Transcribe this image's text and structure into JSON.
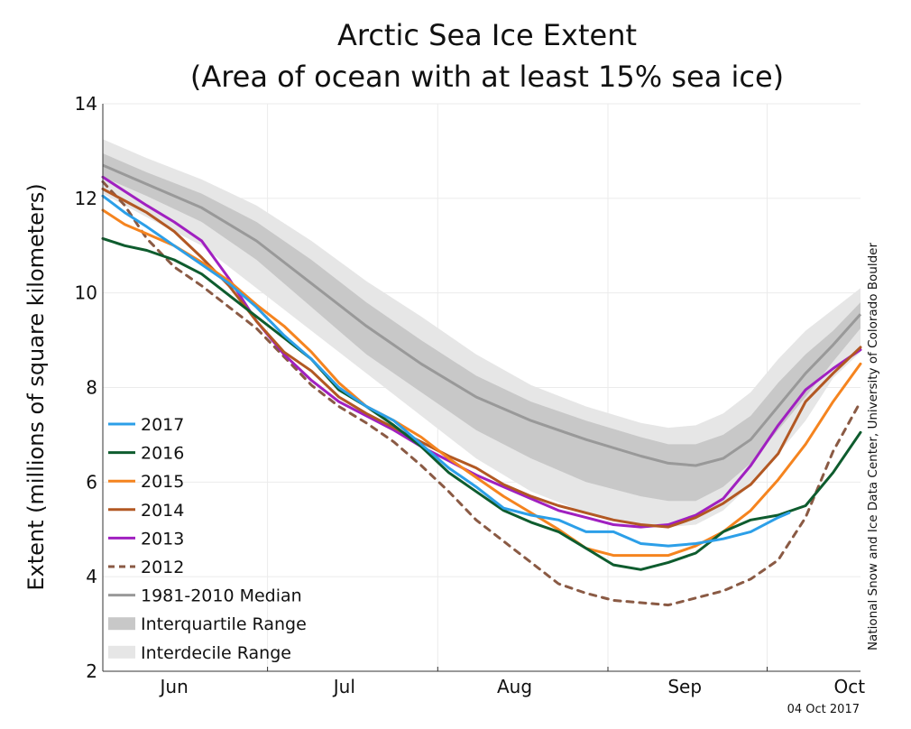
{
  "chart_data": {
    "type": "line",
    "title": [
      "Arctic Sea Ice Extent",
      "(Area of ocean with at least 15% sea ice)"
    ],
    "ylabel": "Extent (millions of square kilometers)",
    "ylim": [
      2,
      14
    ],
    "yticks": [
      "14",
      "12",
      "10",
      "8",
      "6",
      "4",
      "2"
    ],
    "x_days": [
      152,
      290
    ],
    "months": [
      {
        "label": "Jun",
        "center": 165
      },
      {
        "label": "Jul",
        "center": 196
      },
      {
        "label": "Aug",
        "center": 227
      },
      {
        "label": "Sep",
        "center": 258
      },
      {
        "label": "Oct",
        "center": 288
      }
    ],
    "month_boundaries": [
      182,
      213,
      244,
      273
    ],
    "grid": true,
    "legend_position": "bottom-left",
    "credit": "National Snow and Ice Data Center, University of Colorado Boulder",
    "date_stamp": "04 Oct 2017",
    "median": {
      "name": "1981-2010 Median",
      "color": "#999999",
      "x": [
        152,
        160,
        170,
        180,
        190,
        200,
        210,
        220,
        230,
        240,
        250,
        255,
        260,
        265,
        270,
        275,
        280,
        285,
        290
      ],
      "y": [
        12.7,
        12.3,
        11.8,
        11.1,
        10.2,
        9.3,
        8.5,
        7.8,
        7.3,
        6.9,
        6.55,
        6.4,
        6.35,
        6.5,
        6.9,
        7.6,
        8.3,
        8.9,
        9.55
      ]
    },
    "interquartile": {
      "name": "Interquartile Range",
      "color": "#c8c8c8",
      "x": [
        152,
        160,
        170,
        180,
        190,
        200,
        210,
        220,
        230,
        240,
        250,
        255,
        260,
        265,
        270,
        275,
        280,
        285,
        290
      ],
      "upper": [
        12.95,
        12.55,
        12.1,
        11.5,
        10.7,
        9.8,
        9.0,
        8.25,
        7.7,
        7.3,
        6.95,
        6.8,
        6.8,
        7.0,
        7.4,
        8.1,
        8.7,
        9.2,
        9.8
      ],
      "lower": [
        12.45,
        12.05,
        11.5,
        10.7,
        9.7,
        8.7,
        7.9,
        7.1,
        6.5,
        6.0,
        5.7,
        5.6,
        5.6,
        5.9,
        6.4,
        7.1,
        7.8,
        8.55,
        9.25
      ]
    },
    "interdecile": {
      "name": "Interdecile Range",
      "color": "#e6e6e6",
      "x": [
        152,
        160,
        170,
        180,
        190,
        200,
        210,
        220,
        230,
        240,
        250,
        255,
        260,
        265,
        270,
        275,
        280,
        285,
        290
      ],
      "upper": [
        13.25,
        12.85,
        12.4,
        11.85,
        11.1,
        10.25,
        9.5,
        8.7,
        8.05,
        7.6,
        7.25,
        7.15,
        7.2,
        7.45,
        7.9,
        8.6,
        9.2,
        9.65,
        10.1
      ],
      "lower": [
        12.1,
        11.6,
        11.0,
        10.1,
        9.2,
        8.3,
        7.4,
        6.5,
        5.8,
        5.35,
        5.1,
        5.05,
        5.1,
        5.4,
        5.95,
        6.6,
        7.3,
        8.2,
        8.75
      ]
    },
    "series": [
      {
        "name": "2017",
        "color": "#2c9fe8",
        "dashed": false,
        "x": [
          152,
          156,
          160,
          165,
          170,
          175,
          180,
          185,
          190,
          195,
          200,
          205,
          210,
          215,
          220,
          225,
          230,
          235,
          240,
          245,
          250,
          255,
          260,
          265,
          270,
          275,
          277
        ],
        "y": [
          12.05,
          11.7,
          11.4,
          11.0,
          10.6,
          10.2,
          9.7,
          9.1,
          8.6,
          8.0,
          7.6,
          7.3,
          6.8,
          6.3,
          5.9,
          5.45,
          5.3,
          5.2,
          4.95,
          4.95,
          4.7,
          4.65,
          4.7,
          4.8,
          4.95,
          5.25,
          5.35
        ]
      },
      {
        "name": "2016",
        "color": "#0e5c2e",
        "dashed": false,
        "x": [
          152,
          156,
          160,
          165,
          170,
          175,
          180,
          185,
          190,
          195,
          200,
          205,
          210,
          215,
          220,
          225,
          230,
          235,
          240,
          245,
          250,
          255,
          260,
          265,
          270,
          275,
          280,
          285,
          290
        ],
        "y": [
          11.15,
          11.0,
          10.9,
          10.7,
          10.4,
          9.95,
          9.5,
          9.05,
          8.6,
          7.95,
          7.6,
          7.2,
          6.75,
          6.2,
          5.8,
          5.4,
          5.15,
          4.95,
          4.6,
          4.25,
          4.15,
          4.3,
          4.5,
          4.95,
          5.2,
          5.3,
          5.5,
          6.2,
          7.05
        ]
      },
      {
        "name": "2015",
        "color": "#f5841f",
        "dashed": false,
        "x": [
          152,
          156,
          160,
          165,
          170,
          175,
          180,
          185,
          190,
          195,
          200,
          205,
          210,
          215,
          220,
          225,
          230,
          235,
          240,
          245,
          250,
          255,
          260,
          265,
          270,
          275,
          280,
          285,
          290
        ],
        "y": [
          11.75,
          11.45,
          11.25,
          11.0,
          10.65,
          10.25,
          9.75,
          9.3,
          8.75,
          8.1,
          7.6,
          7.3,
          6.95,
          6.5,
          6.1,
          5.7,
          5.35,
          5.0,
          4.6,
          4.45,
          4.45,
          4.45,
          4.65,
          4.95,
          5.4,
          6.05,
          6.8,
          7.7,
          8.5
        ]
      },
      {
        "name": "2014",
        "color": "#b25823",
        "dashed": false,
        "x": [
          152,
          156,
          160,
          165,
          170,
          175,
          180,
          185,
          190,
          195,
          200,
          205,
          210,
          215,
          220,
          225,
          230,
          235,
          240,
          245,
          250,
          255,
          260,
          265,
          270,
          275,
          280,
          285,
          290
        ],
        "y": [
          12.2,
          11.95,
          11.7,
          11.3,
          10.75,
          10.15,
          9.4,
          8.75,
          8.35,
          7.8,
          7.45,
          7.15,
          6.85,
          6.55,
          6.3,
          5.95,
          5.7,
          5.5,
          5.35,
          5.2,
          5.1,
          5.05,
          5.25,
          5.55,
          5.95,
          6.6,
          7.7,
          8.3,
          8.85
        ]
      },
      {
        "name": "2013",
        "color": "#a020c0",
        "dashed": false,
        "x": [
          152,
          156,
          160,
          165,
          170,
          175,
          180,
          185,
          190,
          195,
          200,
          205,
          210,
          215,
          220,
          225,
          230,
          235,
          240,
          245,
          250,
          255,
          260,
          265,
          270,
          275,
          280,
          285,
          290
        ],
        "y": [
          12.45,
          12.15,
          11.85,
          11.5,
          11.1,
          10.3,
          9.4,
          8.7,
          8.15,
          7.7,
          7.4,
          7.1,
          6.75,
          6.45,
          6.15,
          5.9,
          5.65,
          5.4,
          5.25,
          5.1,
          5.05,
          5.1,
          5.3,
          5.65,
          6.35,
          7.2,
          7.95,
          8.4,
          8.8
        ]
      },
      {
        "name": "2012",
        "color": "#8a5a44",
        "dashed": true,
        "x": [
          152,
          156,
          160,
          165,
          170,
          175,
          180,
          185,
          190,
          195,
          200,
          205,
          210,
          215,
          220,
          225,
          230,
          235,
          240,
          245,
          250,
          255,
          260,
          265,
          270,
          275,
          280,
          285,
          290
        ],
        "y": [
          12.35,
          11.85,
          11.15,
          10.55,
          10.15,
          9.7,
          9.25,
          8.65,
          8.05,
          7.6,
          7.25,
          6.85,
          6.35,
          5.8,
          5.2,
          4.75,
          4.3,
          3.85,
          3.65,
          3.5,
          3.45,
          3.4,
          3.55,
          3.7,
          3.95,
          4.35,
          5.25,
          6.65,
          7.7
        ]
      }
    ],
    "legend": [
      {
        "label": "2017",
        "kind": "line",
        "color": "#2c9fe8"
      },
      {
        "label": "2016",
        "kind": "line",
        "color": "#0e5c2e"
      },
      {
        "label": "2015",
        "kind": "line",
        "color": "#f5841f"
      },
      {
        "label": "2014",
        "kind": "line",
        "color": "#b25823"
      },
      {
        "label": "2013",
        "kind": "line",
        "color": "#a020c0"
      },
      {
        "label": "2012",
        "kind": "dashed",
        "color": "#8a5a44"
      },
      {
        "label": "1981-2010 Median",
        "kind": "line",
        "color": "#999999"
      },
      {
        "label": "Interquartile Range",
        "kind": "band",
        "color": "#c8c8c8"
      },
      {
        "label": "Interdecile Range",
        "kind": "band",
        "color": "#e6e6e6"
      }
    ]
  }
}
